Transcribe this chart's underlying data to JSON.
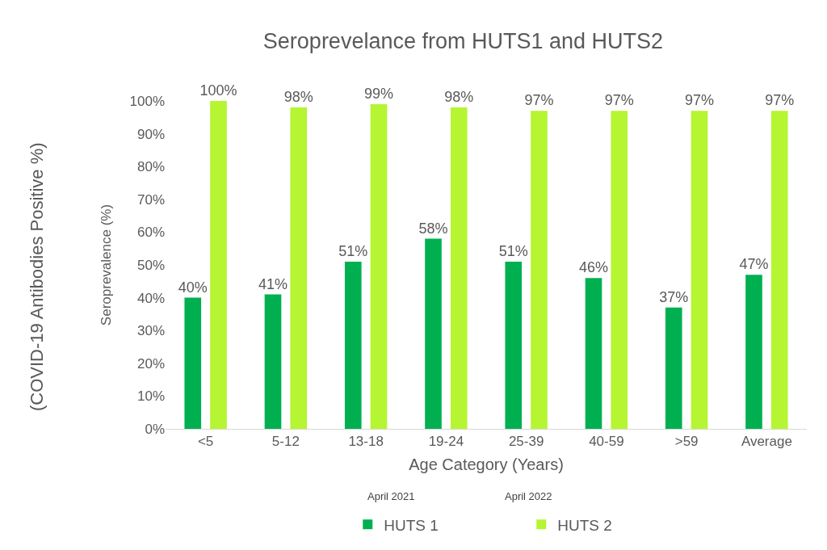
{
  "chart_data": {
    "type": "bar",
    "title": "Seroprevelance from HUTS1 and HUTS2",
    "xlabel": "Age Category (Years)",
    "ylabel": "Seroprevalence (%)",
    "annotations": [
      "(COVID-19 Antibodies Positive %)",
      "April 2021",
      "April 2022"
    ],
    "categories": [
      "<5",
      "5-12",
      "13-18",
      "19-24",
      "25-39",
      "40-59",
      ">59",
      "Average"
    ],
    "series": [
      {
        "name": "HUTS 1",
        "color": "#00b050",
        "values": [
          40,
          41,
          51,
          58,
          51,
          46,
          37,
          47
        ],
        "value_labels": [
          "40%",
          "41%",
          "51%",
          "58%",
          "51%",
          "46%",
          "37%",
          "47%"
        ]
      },
      {
        "name": "HUTS 2",
        "color": "#b5f532",
        "values": [
          100,
          98,
          99,
          98,
          97,
          97,
          97,
          97
        ],
        "value_labels": [
          "100%",
          "98%",
          "99%",
          "98%",
          "97%",
          "97%",
          "97%",
          "97%"
        ]
      }
    ],
    "ylim": [
      0,
      100
    ],
    "yticks": [
      {
        "value": 0,
        "label": "0%"
      },
      {
        "value": 10,
        "label": "10%"
      },
      {
        "value": 20,
        "label": "20%"
      },
      {
        "value": 30,
        "label": "30%"
      },
      {
        "value": 40,
        "label": "40%"
      },
      {
        "value": 50,
        "label": "50%"
      },
      {
        "value": 60,
        "label": "60%"
      },
      {
        "value": 70,
        "label": "70%"
      },
      {
        "value": 80,
        "label": "80%"
      },
      {
        "value": 90,
        "label": "90%"
      },
      {
        "value": 100,
        "label": "100%"
      }
    ],
    "grid": false,
    "legend": "bottom"
  }
}
